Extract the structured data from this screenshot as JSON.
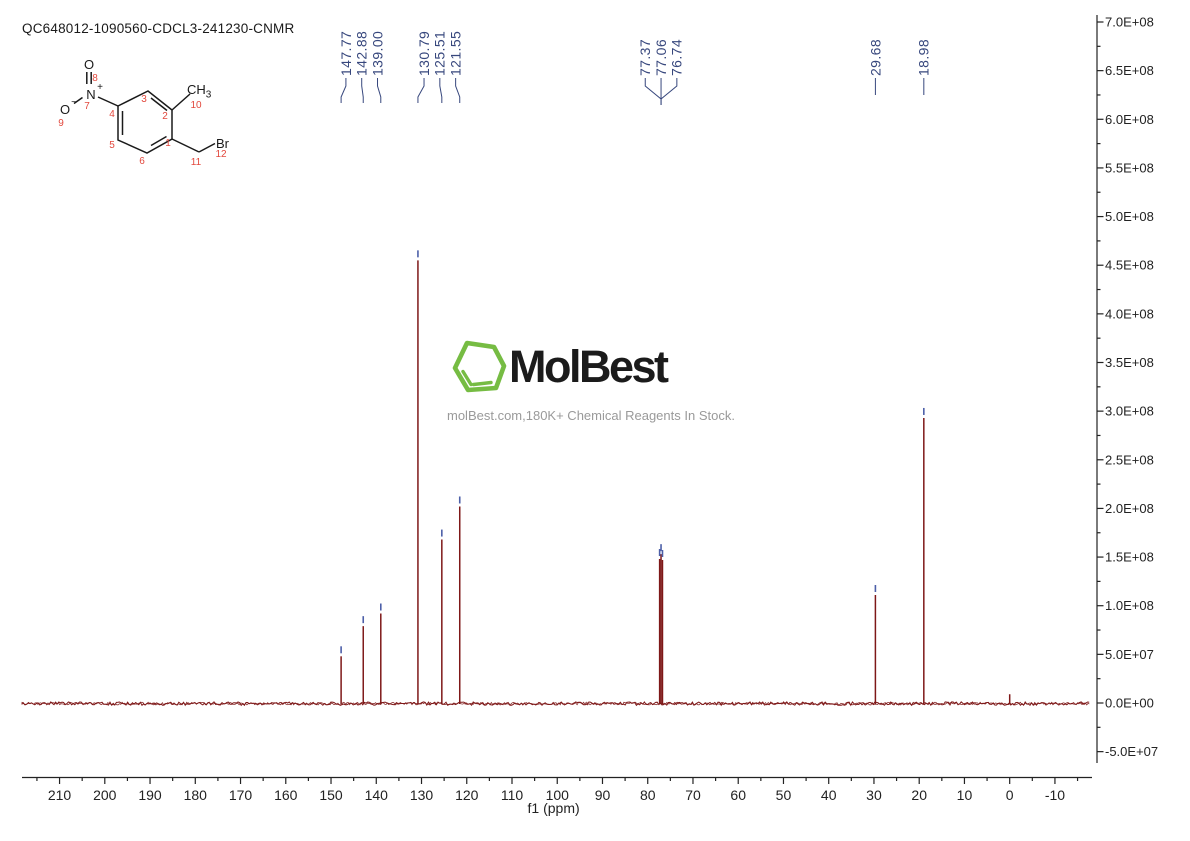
{
  "header": {
    "title": "QC648012-1090560-CDCL3-241230-CNMR"
  },
  "watermark": {
    "brand": "MolBest",
    "tagline": "molBest.com,180K+ Chemical Reagents In Stock."
  },
  "colors": {
    "spectrum_line": "#7E1818",
    "peak_label": "#37477D",
    "peak_marker": "#4C5FA8",
    "axis": "#222222",
    "structure_bond": "#1a1a1a",
    "structure_number": "#E2483D",
    "logo_green": "#76BC43",
    "tagline_gray": "#9A9A9A"
  },
  "structure": {
    "labels": {
      "o_top": "O",
      "n": "N",
      "n_charge": "+",
      "o_left": "O",
      "o_charge": "−",
      "ch": "CH",
      "ch_sub": "3",
      "br": "Br"
    },
    "numbers": {
      "n1": "1",
      "n2": "2",
      "n3": "3",
      "n4": "4",
      "n5": "5",
      "n6": "6",
      "n7": "7",
      "n8": "8",
      "n9": "9",
      "n10": "10",
      "n11": "11",
      "n12": "12"
    }
  },
  "chart_data": {
    "type": "line",
    "title": "QC648012-1090560-CDCL3-241230-CNMR",
    "xlabel": "f1 (ppm)",
    "grid": false,
    "legend": false,
    "background": "#ffffff",
    "x_axis": {
      "tick_values": [
        210,
        200,
        190,
        180,
        170,
        160,
        150,
        140,
        130,
        120,
        110,
        100,
        90,
        80,
        70,
        60,
        50,
        40,
        30,
        20,
        10,
        0,
        -10
      ],
      "minor_step": 5,
      "range": [
        218.3,
        -17.75
      ],
      "direction": "reversed"
    },
    "y_axis": {
      "tick_labels": [
        "7.0E+08",
        "6.5E+08",
        "6.0E+08",
        "5.5E+08",
        "5.0E+08",
        "4.5E+08",
        "4.0E+08",
        "3.5E+08",
        "3.0E+08",
        "2.5E+08",
        "2.0E+08",
        "1.5E+08",
        "1.0E+08",
        "5.0E+07",
        "0.0E+00",
        "-5.0E+07"
      ],
      "tick_values": [
        700000000.0,
        650000000.0,
        600000000.0,
        550000000.0,
        500000000.0,
        450000000.0,
        400000000.0,
        350000000.0,
        300000000.0,
        250000000.0,
        200000000.0,
        150000000.0,
        100000000.0,
        50000000.0,
        0,
        -50000000.0
      ],
      "minor_step": 25000000.0,
      "range": [
        -62000000.0,
        707000000.0
      ]
    },
    "peaks": [
      {
        "ppm": 147.77,
        "intensity": 48000000.0,
        "labeled": true
      },
      {
        "ppm": 142.88,
        "intensity": 79000000.0,
        "labeled": true
      },
      {
        "ppm": 139.0,
        "intensity": 92000000.0,
        "labeled": true
      },
      {
        "ppm": 130.79,
        "intensity": 455000000.0,
        "labeled": true
      },
      {
        "ppm": 125.51,
        "intensity": 168000000.0,
        "labeled": true
      },
      {
        "ppm": 121.55,
        "intensity": 202000000.0,
        "labeled": true
      },
      {
        "ppm": 77.37,
        "intensity": 148000000.0,
        "labeled": true
      },
      {
        "ppm": 77.06,
        "intensity": 153000000.0,
        "labeled": true
      },
      {
        "ppm": 76.74,
        "intensity": 147000000.0,
        "labeled": true
      },
      {
        "ppm": 29.68,
        "intensity": 111000000.0,
        "labeled": true
      },
      {
        "ppm": 18.98,
        "intensity": 293000000.0,
        "labeled": true
      },
      {
        "ppm": 0.0,
        "intensity": 9000000.0,
        "labeled": false
      }
    ],
    "peak_labels": [
      {
        "text": "147.77",
        "ppm": 147.77
      },
      {
        "text": "142.88",
        "ppm": 142.88
      },
      {
        "text": "139.00",
        "ppm": 139.0
      },
      {
        "text": "130.79",
        "ppm": 130.79
      },
      {
        "text": "125.51",
        "ppm": 125.51
      },
      {
        "text": "121.55",
        "ppm": 121.55
      },
      {
        "text": "77.37",
        "ppm": 77.37
      },
      {
        "text": "77.06",
        "ppm": 77.06
      },
      {
        "text": "76.74",
        "ppm": 76.74
      },
      {
        "text": "29.68",
        "ppm": 29.68
      },
      {
        "text": "18.98",
        "ppm": 18.98
      }
    ],
    "label_groups": [
      {
        "indices": [
          0,
          1,
          2
        ],
        "style": "spread"
      },
      {
        "indices": [
          3,
          4,
          5
        ],
        "style": "spread"
      },
      {
        "indices": [
          6,
          7,
          8
        ],
        "style": "converge"
      },
      {
        "indices": [
          9
        ],
        "style": "single"
      },
      {
        "indices": [
          10
        ],
        "style": "single"
      }
    ]
  }
}
